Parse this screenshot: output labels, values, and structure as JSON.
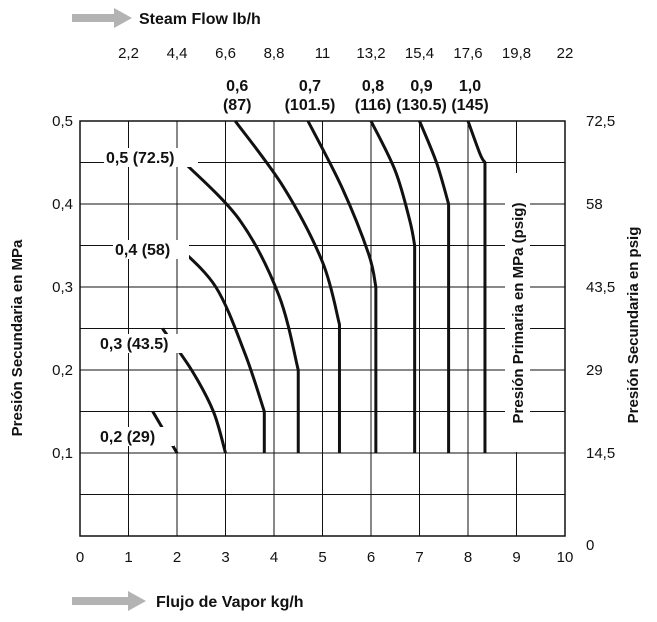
{
  "chart_data": {
    "type": "line",
    "top_axis_label": "Steam Flow lb/h",
    "bottom_axis_label": "Flujo de Vapor kg/h",
    "left_axis_label": "Presión Secundaria en MPa",
    "right_axis_label": "Presión Secundaria en psig",
    "inner_axis_label": "Presión Primaria en MPa (psig)",
    "xlim": [
      0,
      10
    ],
    "ylim": [
      0,
      0.5
    ],
    "x_ticks": [
      0,
      1,
      2,
      3,
      4,
      5,
      6,
      7,
      8,
      9,
      10
    ],
    "x_tick_labels": [
      "0",
      "1",
      "2",
      "3",
      "4",
      "5",
      "6",
      "7",
      "8",
      "9",
      "10"
    ],
    "top_ticks": [
      1,
      2,
      3,
      4,
      5,
      6,
      7,
      8,
      9,
      10
    ],
    "top_tick_labels": [
      "2,2",
      "4,4",
      "6,6",
      "8,8",
      "11",
      "13,2",
      "15,4",
      "17,6",
      "19,8",
      "22"
    ],
    "y_ticks": [
      0.1,
      0.2,
      0.3,
      0.4,
      0.5
    ],
    "y_tick_labels": [
      "0,1",
      "0,2",
      "0,3",
      "0,4",
      "0,5"
    ],
    "right_ticks": [
      0,
      0.1,
      0.2,
      0.3,
      0.4,
      0.5
    ],
    "right_tick_labels": [
      "0",
      "14,5",
      "29",
      "43,5",
      "58",
      "72,5"
    ],
    "grid": true,
    "series": [
      {
        "name": "0,2 (29)",
        "points": [
          [
            1.5,
            0.15
          ],
          [
            2.0,
            0.1
          ]
        ]
      },
      {
        "name": "0,3 (43.5)",
        "points": [
          [
            1.7,
            0.25
          ],
          [
            2.3,
            0.2
          ],
          [
            2.75,
            0.15
          ],
          [
            3.0,
            0.1
          ]
        ]
      },
      {
        "name": "0,4 (58)",
        "points": [
          [
            2.0,
            0.35
          ],
          [
            2.8,
            0.3
          ],
          [
            3.4,
            0.22
          ],
          [
            3.8,
            0.15
          ],
          [
            3.8,
            0.1
          ]
        ]
      },
      {
        "name": "0,5 (72.5)",
        "points": [
          [
            2.15,
            0.45
          ],
          [
            3.3,
            0.38
          ],
          [
            4.1,
            0.29
          ],
          [
            4.5,
            0.2
          ],
          [
            4.5,
            0.1
          ]
        ]
      },
      {
        "name": "0,6 (87)",
        "line1": "0,6",
        "line2": "(87)",
        "points": [
          [
            3.2,
            0.5
          ],
          [
            4.2,
            0.42
          ],
          [
            5.0,
            0.33
          ],
          [
            5.35,
            0.255
          ],
          [
            5.35,
            0.1
          ]
        ]
      },
      {
        "name": "0,7 (101.5)",
        "line1": "0,7",
        "line2": "(101.5)",
        "points": [
          [
            4.7,
            0.5
          ],
          [
            5.4,
            0.42
          ],
          [
            5.95,
            0.34
          ],
          [
            6.1,
            0.3
          ],
          [
            6.1,
            0.1
          ]
        ]
      },
      {
        "name": "0,8 (116)",
        "line1": "0,8",
        "line2": "(116)",
        "points": [
          [
            6.0,
            0.5
          ],
          [
            6.5,
            0.44
          ],
          [
            6.8,
            0.38
          ],
          [
            6.9,
            0.35
          ],
          [
            6.9,
            0.1
          ]
        ]
      },
      {
        "name": "0,9 (130.5)",
        "line1": "0,9",
        "line2": "(130.5)",
        "points": [
          [
            7.0,
            0.5
          ],
          [
            7.35,
            0.45
          ],
          [
            7.6,
            0.4
          ],
          [
            7.6,
            0.1
          ]
        ]
      },
      {
        "name": "1,0 (145)",
        "line1": "1,0",
        "line2": "(145)",
        "points": [
          [
            8.0,
            0.5
          ],
          [
            8.25,
            0.46
          ],
          [
            8.35,
            0.45
          ],
          [
            8.35,
            0.1
          ]
        ]
      }
    ]
  },
  "colors": {
    "line": "#111111",
    "grid": "#111111",
    "arrow": "#b3b3b3"
  }
}
